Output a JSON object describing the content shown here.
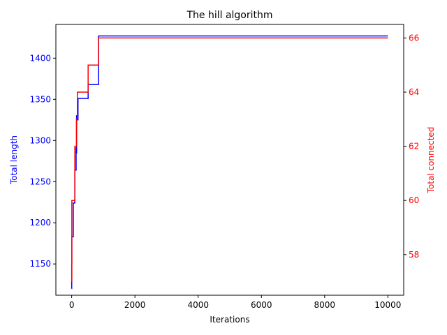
{
  "chart_data": {
    "type": "line",
    "title": "The hill algorithm",
    "xlabel": "Iterations",
    "ylabel_left": "Total length",
    "ylabel_right": "Total connected",
    "xlim": [
      -500,
      10500
    ],
    "ylim_left": [
      1112,
      1441
    ],
    "ylim_right": [
      56.5,
      66.5
    ],
    "xticks": [
      0,
      2000,
      4000,
      6000,
      8000,
      10000
    ],
    "yticks_left": [
      1150,
      1200,
      1250,
      1300,
      1350,
      1400
    ],
    "yticks_right": [
      58,
      60,
      62,
      64,
      66
    ],
    "grid": false,
    "series": [
      {
        "name": "Total length",
        "axis": "left",
        "color": "#0000ff",
        "x": [
          0,
          1,
          1,
          5,
          5,
          10,
          10,
          50,
          50,
          100,
          100,
          140,
          140,
          150,
          150,
          155,
          155,
          170,
          170,
          200,
          200,
          520,
          520,
          850,
          850,
          10000
        ],
        "y": [
          1120,
          1120,
          1150,
          1150,
          1183,
          1183,
          1183,
          1183,
          1224,
          1224,
          1264,
          1264,
          1291,
          1291,
          1285,
          1285,
          1330,
          1330,
          1325,
          1325,
          1351,
          1351,
          1368,
          1368,
          1427,
          1427
        ]
      },
      {
        "name": "Total connected",
        "axis": "right",
        "color": "#ff0000",
        "x": [
          0,
          5,
          5,
          100,
          100,
          150,
          150,
          180,
          180,
          520,
          520,
          850,
          850,
          10000
        ],
        "y": [
          57,
          57,
          60,
          60,
          62,
          62,
          63,
          63,
          64,
          64,
          65,
          65,
          66,
          66
        ]
      }
    ]
  }
}
